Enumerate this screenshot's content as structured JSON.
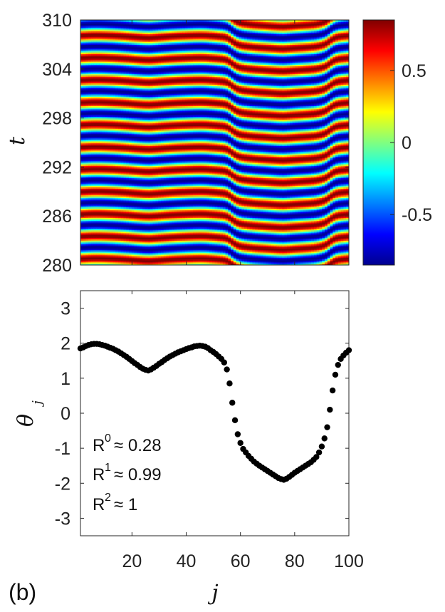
{
  "chart_data": [
    {
      "type": "heatmap",
      "title": "",
      "ylabel": "t",
      "xlabel": "",
      "xlim": [
        1,
        100
      ],
      "ylim": [
        280,
        310
      ],
      "yticks": [
        "280",
        "286",
        "292",
        "298",
        "304",
        "310"
      ],
      "colorbar": {
        "clim": [
          -0.85,
          0.85
        ],
        "ticks": [
          "-0.5",
          "0",
          "0.5"
        ],
        "colormap": [
          "#00008f",
          "#0000ff",
          "#0080ff",
          "#00ffff",
          "#80ff80",
          "#ffff00",
          "#ff8000",
          "#ff0000",
          "#800000"
        ]
      },
      "field": {
        "formula": "cos(omega*(t-280) - theta_j)",
        "omega": 2.3
      }
    },
    {
      "type": "scatter",
      "panel_label": "(b)",
      "xlabel": "j",
      "ylabel": "θ",
      "ylabel_sub": "j",
      "xlim": [
        1,
        100
      ],
      "ylim": [
        -3.5,
        3.5
      ],
      "xticks": [
        "20",
        "40",
        "60",
        "80",
        "100"
      ],
      "yticks": [
        "-3",
        "-2",
        "-1",
        "0",
        "1",
        "2",
        "3"
      ],
      "annotations": [
        {
          "base": "R",
          "sup": "0",
          "text": "≈ 0.28"
        },
        {
          "base": "R",
          "sup": "1",
          "text": "≈ 0.99"
        },
        {
          "base": "R",
          "sup": "2",
          "text": "≈ 1"
        }
      ],
      "x": [
        1,
        2,
        3,
        4,
        5,
        6,
        7,
        8,
        9,
        10,
        11,
        12,
        13,
        14,
        15,
        16,
        17,
        18,
        19,
        20,
        21,
        22,
        23,
        24,
        25,
        26,
        27,
        28,
        29,
        30,
        31,
        32,
        33,
        34,
        35,
        36,
        37,
        38,
        39,
        40,
        41,
        42,
        43,
        44,
        45,
        46,
        47,
        48,
        49,
        50,
        51,
        52,
        53,
        54,
        55,
        56,
        57,
        58,
        59,
        60,
        61,
        62,
        63,
        64,
        65,
        66,
        67,
        68,
        69,
        70,
        71,
        72,
        73,
        74,
        75,
        76,
        77,
        78,
        79,
        80,
        81,
        82,
        83,
        84,
        85,
        86,
        87,
        88,
        89,
        90,
        91,
        92,
        93,
        94,
        95,
        96,
        97,
        98,
        99,
        100
      ],
      "y": [
        1.85,
        1.88,
        1.92,
        1.95,
        1.97,
        1.98,
        1.98,
        1.97,
        1.95,
        1.93,
        1.9,
        1.87,
        1.84,
        1.8,
        1.76,
        1.71,
        1.66,
        1.61,
        1.55,
        1.49,
        1.43,
        1.38,
        1.32,
        1.27,
        1.24,
        1.22,
        1.25,
        1.3,
        1.35,
        1.41,
        1.46,
        1.52,
        1.57,
        1.62,
        1.66,
        1.7,
        1.74,
        1.77,
        1.8,
        1.83,
        1.86,
        1.88,
        1.91,
        1.92,
        1.93,
        1.92,
        1.9,
        1.86,
        1.8,
        1.75,
        1.69,
        1.62,
        1.55,
        1.45,
        1.25,
        0.85,
        0.3,
        -0.2,
        -0.6,
        -0.85,
        -1.02,
        -1.12,
        -1.22,
        -1.3,
        -1.38,
        -1.44,
        -1.5,
        -1.55,
        -1.6,
        -1.65,
        -1.7,
        -1.75,
        -1.8,
        -1.85,
        -1.88,
        -1.9,
        -1.87,
        -1.82,
        -1.76,
        -1.7,
        -1.65,
        -1.6,
        -1.55,
        -1.5,
        -1.45,
        -1.4,
        -1.33,
        -1.25,
        -1.12,
        -0.95,
        -0.72,
        -0.4,
        0.1,
        0.65,
        1.1,
        1.38,
        1.55,
        1.65,
        1.73,
        1.8
      ]
    }
  ]
}
